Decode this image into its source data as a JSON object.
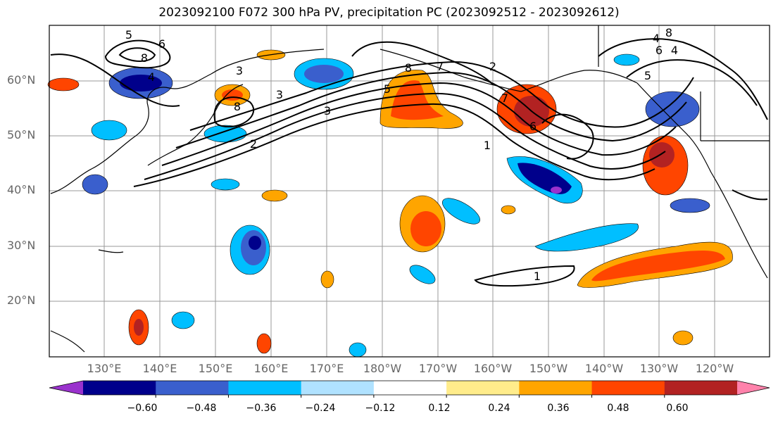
{
  "title": "2023092100 F072 300 hPa PV, precipitation PC (2023092512 - 2023092612)",
  "lat_labels": [
    "60°N",
    "50°N",
    "40°N",
    "30°N",
    "20°N"
  ],
  "lon_labels": [
    "130°E",
    "140°E",
    "150°E",
    "160°E",
    "170°E",
    "180°W",
    "170°W",
    "160°W",
    "150°W",
    "140°W",
    "130°W",
    "120°W"
  ],
  "colorbar": {
    "colors": [
      "#9a32cd",
      "#00008b",
      "#3a5fcd",
      "#00bfff",
      "#b0e2ff",
      "#ffffff",
      "#ffec8b",
      "#ffa500",
      "#ff4500",
      "#b22222",
      "#ff82ab"
    ],
    "tick_labels": [
      "−0.60",
      "−0.48",
      "−0.36",
      "−0.24",
      "−0.12",
      "0.12",
      "0.24",
      "0.36",
      "0.48",
      "0.60"
    ]
  },
  "contour_labels": [
    "5",
    "6",
    "8",
    "4",
    "3",
    "8",
    "3",
    "2",
    "5",
    "8",
    "7",
    "2",
    "3",
    "4",
    "1",
    "6",
    "7",
    "8",
    "6",
    "4",
    "5",
    "1"
  ]
}
